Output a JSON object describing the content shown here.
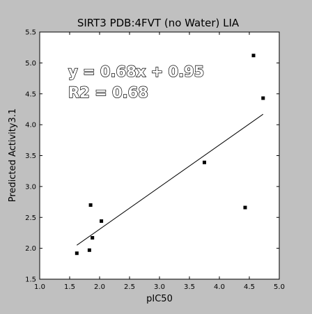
{
  "chart_data": {
    "type": "scatter",
    "title": "SIRT3 PDB:4FVT (no Water)  LIA",
    "xlabel": "pIC50",
    "ylabel": "Predicted Activity3.1",
    "xlim": [
      1.0,
      5.0
    ],
    "ylim": [
      1.5,
      5.5
    ],
    "xticks": [
      "1.0",
      "1.5",
      "2.0",
      "2.5",
      "3.0",
      "3.5",
      "4.0",
      "4.5",
      "5.0"
    ],
    "yticks": [
      "1.5",
      "2.0",
      "2.5",
      "3.0",
      "3.5",
      "4.0",
      "4.5",
      "5.0",
      "5.5"
    ],
    "points": [
      {
        "x": 1.62,
        "y": 1.92
      },
      {
        "x": 1.83,
        "y": 1.97
      },
      {
        "x": 1.85,
        "y": 2.7
      },
      {
        "x": 1.88,
        "y": 2.17
      },
      {
        "x": 2.03,
        "y": 2.44
      },
      {
        "x": 3.75,
        "y": 3.39
      },
      {
        "x": 4.43,
        "y": 2.66
      },
      {
        "x": 4.57,
        "y": 5.12
      },
      {
        "x": 4.73,
        "y": 4.43
      }
    ],
    "fit_line": {
      "x": [
        1.62,
        4.73
      ],
      "y": [
        2.05,
        4.17
      ]
    },
    "annotations": [
      "y = 0.68x + 0.95",
      "R2 = 0.68"
    ],
    "grid": false,
    "legend": "none",
    "colors": {
      "background": "#c0c0c0",
      "plot_area": "#ffffff",
      "marker": "#000000",
      "line": "#000000"
    }
  }
}
